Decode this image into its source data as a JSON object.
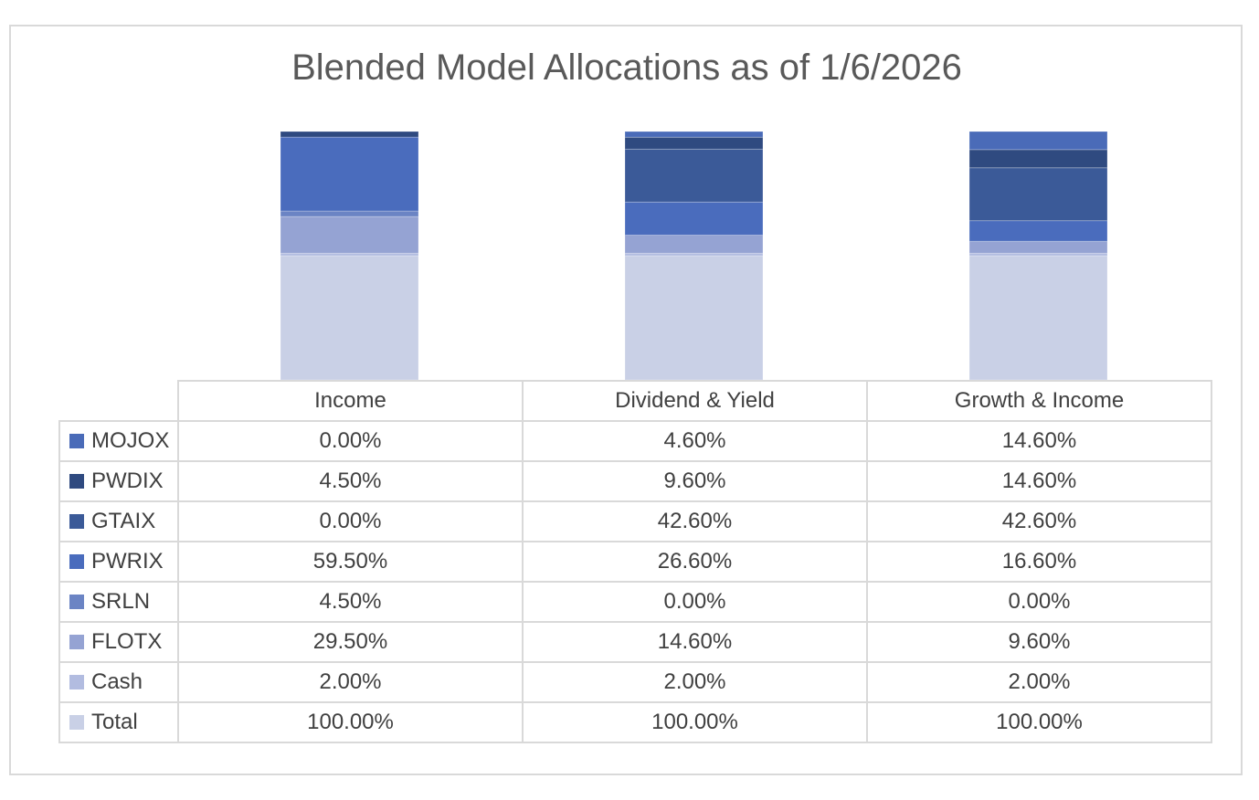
{
  "chart_data": {
    "type": "bar",
    "stacked": true,
    "title": "Blended Model Allocations as of 1/6/2026",
    "categories": [
      "Income",
      "Dividend & Yield",
      "Growth & Income"
    ],
    "series": [
      {
        "name": "MOJOX",
        "values": [
          0.0,
          4.6,
          14.6
        ],
        "labels": [
          "0.00%",
          "4.60%",
          "14.60%"
        ],
        "color": "#4a6bb8"
      },
      {
        "name": "PWDIX",
        "values": [
          4.5,
          9.6,
          14.6
        ],
        "labels": [
          "4.50%",
          "9.60%",
          "14.60%"
        ],
        "color": "#2f4a80"
      },
      {
        "name": "GTAIX",
        "values": [
          0.0,
          42.6,
          42.6
        ],
        "labels": [
          "0.00%",
          "42.60%",
          "42.60%"
        ],
        "color": "#3b5a98"
      },
      {
        "name": "PWRIX",
        "values": [
          59.5,
          26.6,
          16.6
        ],
        "labels": [
          "59.50%",
          "26.60%",
          "16.60%"
        ],
        "color": "#4a6cbd"
      },
      {
        "name": "SRLN",
        "values": [
          4.5,
          0.0,
          0.0
        ],
        "labels": [
          "4.50%",
          "0.00%",
          "0.00%"
        ],
        "color": "#6b84c4"
      },
      {
        "name": "FLOTX",
        "values": [
          29.5,
          14.6,
          9.6
        ],
        "labels": [
          "29.50%",
          "14.60%",
          "9.60%"
        ],
        "color": "#95a3d3"
      },
      {
        "name": "Cash",
        "values": [
          2.0,
          2.0,
          2.0
        ],
        "labels": [
          "2.00%",
          "2.00%",
          "2.00%"
        ],
        "color": "#b2bce0"
      },
      {
        "name": "Total",
        "values": [
          100.0,
          100.0,
          100.0
        ],
        "labels": [
          "100.00%",
          "100.00%",
          "100.00%"
        ],
        "color": "#c9d0e6"
      }
    ],
    "ylim": [
      0,
      200
    ],
    "legend": "data-table",
    "grid": false
  }
}
